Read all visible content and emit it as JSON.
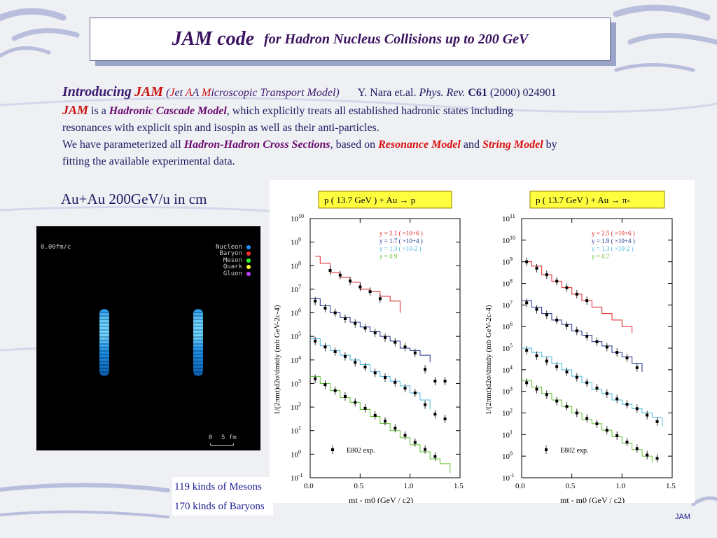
{
  "title": {
    "main": "JAM code",
    "sub": "for Hadron Nucleus Collisions up to 200 GeV"
  },
  "intro": {
    "introducing": "Introducing",
    "jam": "JAM",
    "paren_open": "(",
    "j": "J",
    "et": "et ",
    "a1": "A",
    "a2": "A ",
    "m": "M",
    "icro": "icroscopic Transport Model)",
    "ref_authors": "Y. Nara et.al.",
    "ref_journal": "Phys. Rev.",
    "ref_volume": "C61",
    "ref_rest": "(2000) 024901",
    "line2_jam": "JAM",
    "line2_isa": " is a ",
    "line2_model": "Hadronic Cascade Model",
    "line2_rest": ", which explicitly treats all established hadronic states including",
    "line3": "resonances with explicit spin and isospin as well as their anti-particles.",
    "line4_a": "We have parameterized all ",
    "line4_hh": "Hadron-Hadron Cross Sections",
    "line4_b": ", based on ",
    "line4_res": "Resonance Model",
    "line4_and": " and ",
    "line4_str": "String Model",
    "line4_by": " by",
    "line5": "fitting the available experimental data."
  },
  "auau_label": "Au+Au 200GeV/u in cm",
  "simulation": {
    "time": "0.00fm/c",
    "legend": [
      {
        "label": "Nucleon",
        "color": "#1e90ff"
      },
      {
        "label": "Baryon",
        "color": "#ff3030"
      },
      {
        "label": "Meson",
        "color": "#30ff30"
      },
      {
        "label": "Quark",
        "color": "#ffff30"
      },
      {
        "label": "Gluon",
        "color": "#c040ff"
      }
    ],
    "scale_0": "0",
    "scale_5": "5 fm"
  },
  "kinds": {
    "mesons": "119 kinds of Mesons",
    "baryons": "170 kinds of Baryons"
  },
  "footer": "JAM",
  "chart_data": [
    {
      "type": "line",
      "title": "p ( 13.7 GeV )  + Au  →  p",
      "xlabel": "mt - m0  (GeV / c2)",
      "ylabel": "1/(2πmt)d2σ/dmtdy (mb GeV-2c-4)",
      "xlim": [
        0.0,
        1.5
      ],
      "ylim_log10": [
        -1,
        10
      ],
      "x_ticks": [
        "0.0",
        "0.5",
        "1.0",
        "1.5"
      ],
      "y_ticks": [
        "10-1",
        "100",
        "101",
        "102",
        "103",
        "104",
        "105",
        "106",
        "107",
        "108",
        "109",
        "1010"
      ],
      "legend": "E802 exp.",
      "series": [
        {
          "name": "y = 2.1 ( ×10+6 )",
          "color": "#e02020",
          "x": [
            0.05,
            0.1,
            0.2,
            0.3,
            0.4,
            0.5,
            0.6,
            0.7,
            0.8,
            0.9
          ],
          "y": [
            8.4,
            8.1,
            7.7,
            7.5,
            7.3,
            7.0,
            6.9,
            6.7,
            6.5,
            6.0
          ],
          "exp_x": [
            0.2,
            0.3,
            0.4,
            0.5,
            0.6,
            0.7
          ],
          "exp_y": [
            7.8,
            7.6,
            7.35,
            7.1,
            6.9,
            6.6
          ]
        },
        {
          "name": "y = 1.7 ( ×10+4 )",
          "color": "#203090",
          "x": [
            0.0,
            0.1,
            0.2,
            0.3,
            0.4,
            0.5,
            0.6,
            0.7,
            0.8,
            0.9,
            1.0,
            1.1,
            1.2
          ],
          "y": [
            6.6,
            6.3,
            6.0,
            5.8,
            5.6,
            5.4,
            5.2,
            5.0,
            4.8,
            4.5,
            4.4,
            4.2,
            3.9
          ],
          "exp_x": [
            0.05,
            0.15,
            0.25,
            0.35,
            0.45,
            0.55,
            0.65,
            0.75,
            0.85,
            0.95,
            1.05,
            1.15,
            1.25,
            1.35
          ],
          "exp_y": [
            6.5,
            6.2,
            6.0,
            5.75,
            5.55,
            5.35,
            5.15,
            4.95,
            4.75,
            4.55,
            4.3,
            3.6,
            3.1,
            3.1
          ]
        },
        {
          "name": "y = 1.3 ( ×10-2 )",
          "color": "#4ab8e0",
          "x": [
            0.0,
            0.1,
            0.2,
            0.3,
            0.4,
            0.5,
            0.6,
            0.7,
            0.8,
            0.9,
            1.0,
            1.1,
            1.2
          ],
          "y": [
            4.9,
            4.6,
            4.4,
            4.2,
            4.0,
            3.8,
            3.5,
            3.3,
            3.1,
            2.9,
            2.6,
            2.3,
            1.9
          ],
          "exp_x": [
            0.05,
            0.15,
            0.25,
            0.35,
            0.45,
            0.55,
            0.65,
            0.75,
            0.85,
            0.95,
            1.05,
            1.15,
            1.25,
            1.35
          ],
          "exp_y": [
            4.8,
            4.55,
            4.35,
            4.15,
            3.9,
            3.7,
            3.45,
            3.25,
            3.05,
            2.8,
            2.6,
            2.1,
            1.7,
            1.5
          ]
        },
        {
          "name": "y = 0.9",
          "color": "#60c030",
          "x": [
            0.0,
            0.1,
            0.2,
            0.3,
            0.4,
            0.5,
            0.6,
            0.7,
            0.8,
            0.9,
            1.0,
            1.1,
            1.2,
            1.3,
            1.4
          ],
          "y": [
            3.3,
            3.0,
            2.7,
            2.4,
            2.2,
            1.9,
            1.6,
            1.3,
            1.0,
            0.7,
            0.4,
            0.1,
            -0.2,
            -0.4,
            -0.8
          ],
          "exp_x": [
            0.05,
            0.15,
            0.25,
            0.35,
            0.45,
            0.55,
            0.65,
            0.75,
            0.85,
            0.95,
            1.05,
            1.15,
            1.25
          ],
          "exp_y": [
            3.2,
            2.95,
            2.7,
            2.45,
            2.2,
            1.95,
            1.65,
            1.4,
            1.1,
            0.8,
            0.5,
            0.2,
            -0.1
          ]
        }
      ]
    },
    {
      "type": "line",
      "title": "p ( 13.7 GeV )  + Au  →  π-",
      "xlabel": "mt - m0  (GeV / c2)",
      "ylabel": "1/(2πmt)d2σ/dmtdy (mb GeV-2c-4)",
      "xlim": [
        0.0,
        1.5
      ],
      "ylim_log10": [
        -1,
        11
      ],
      "x_ticks": [
        "0.0",
        "0.5",
        "1.0",
        "1.5"
      ],
      "y_ticks": [
        "10-1",
        "100",
        "101",
        "102",
        "103",
        "104",
        "105",
        "106",
        "107",
        "108",
        "109",
        "1010",
        "1011"
      ],
      "legend": "E802 exp.",
      "series": [
        {
          "name": "y = 2.5 ( ×10+6 )",
          "color": "#e02020",
          "x": [
            0.05,
            0.1,
            0.2,
            0.3,
            0.4,
            0.5,
            0.6,
            0.7,
            0.8,
            0.9,
            1.0,
            1.1
          ],
          "y": [
            9.0,
            8.8,
            8.4,
            8.1,
            7.8,
            7.5,
            7.2,
            6.9,
            6.6,
            6.3,
            6.0,
            5.7
          ],
          "exp_x": [
            0.05,
            0.15,
            0.25,
            0.35,
            0.45,
            0.55,
            0.65
          ],
          "exp_y": [
            9.0,
            8.7,
            8.4,
            8.1,
            7.8,
            7.5,
            7.2
          ]
        },
        {
          "name": "y = 1.9 ( ×10+4 )",
          "color": "#203090",
          "x": [
            0.0,
            0.1,
            0.2,
            0.3,
            0.4,
            0.5,
            0.6,
            0.7,
            0.8,
            0.9,
            1.0,
            1.1,
            1.2
          ],
          "y": [
            7.2,
            6.9,
            6.6,
            6.3,
            6.1,
            5.8,
            5.6,
            5.3,
            5.1,
            4.8,
            4.6,
            4.3,
            3.9
          ],
          "exp_x": [
            0.05,
            0.15,
            0.25,
            0.35,
            0.45,
            0.55,
            0.65,
            0.75,
            0.85,
            0.95,
            1.05,
            1.15
          ],
          "exp_y": [
            7.1,
            6.8,
            6.55,
            6.3,
            6.05,
            5.8,
            5.55,
            5.3,
            5.05,
            4.8,
            4.55,
            4.1
          ]
        },
        {
          "name": "y = 1.3 ( ×10-2 )",
          "color": "#4ab8e0",
          "x": [
            0.0,
            0.1,
            0.2,
            0.3,
            0.4,
            0.5,
            0.6,
            0.7,
            0.8,
            0.9,
            1.0,
            1.1,
            1.2,
            1.3,
            1.4
          ],
          "y": [
            5.0,
            4.8,
            4.6,
            4.3,
            4.0,
            3.7,
            3.4,
            3.1,
            2.9,
            2.6,
            2.4,
            2.2,
            2.0,
            1.8,
            1.4
          ],
          "exp_x": [
            0.05,
            0.15,
            0.25,
            0.35,
            0.45,
            0.55,
            0.65,
            0.75,
            0.85,
            0.95,
            1.05,
            1.15,
            1.25,
            1.35
          ],
          "exp_y": [
            4.9,
            4.65,
            4.4,
            4.15,
            3.9,
            3.65,
            3.4,
            3.15,
            2.9,
            2.65,
            2.4,
            2.2,
            1.9,
            1.6
          ]
        },
        {
          "name": "y = 0.7",
          "color": "#60c030",
          "x": [
            0.0,
            0.1,
            0.2,
            0.3,
            0.4,
            0.5,
            0.6,
            0.7,
            0.8,
            0.9,
            1.0,
            1.1,
            1.2,
            1.3
          ],
          "y": [
            3.5,
            3.2,
            2.9,
            2.6,
            2.3,
            2.0,
            1.7,
            1.5,
            1.2,
            0.9,
            0.6,
            0.3,
            0.0,
            -0.3
          ],
          "exp_x": [
            0.05,
            0.15,
            0.25,
            0.35,
            0.45,
            0.55,
            0.65,
            0.75,
            0.85,
            0.95,
            1.05,
            1.15,
            1.25,
            1.35
          ],
          "exp_y": [
            3.4,
            3.1,
            2.85,
            2.55,
            2.3,
            2.0,
            1.75,
            1.5,
            1.2,
            0.95,
            0.65,
            0.35,
            0.05,
            -0.1
          ]
        }
      ]
    }
  ]
}
